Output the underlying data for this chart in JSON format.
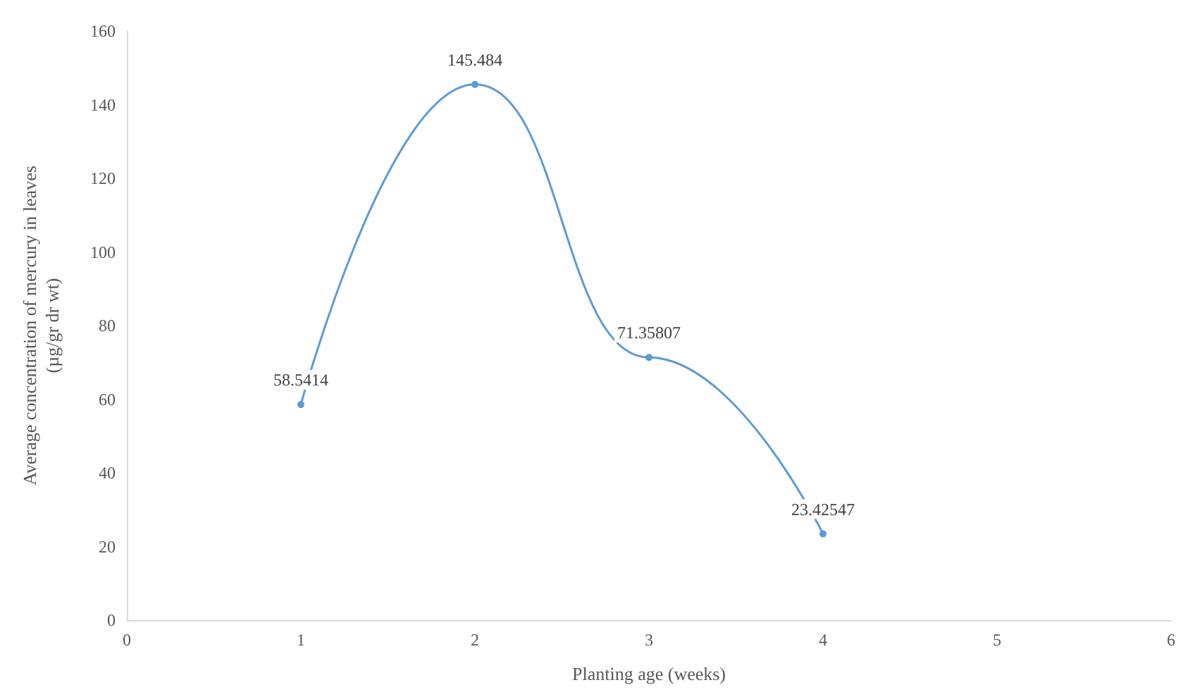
{
  "chart_data": {
    "type": "line",
    "xlabel": "Planting age (weeks)",
    "ylabel": "Average concentration of mercury in leaves\n(µg/gr dr wt)",
    "x": [
      1,
      2,
      3,
      4
    ],
    "series": [
      {
        "color": "#5b9bd5",
        "values": [
          58.5414,
          145.484,
          71.35807,
          23.42547
        ]
      }
    ],
    "value_labels": [
      "58.5414",
      "145.484",
      "71.35807",
      "23.42547"
    ],
    "xlim": [
      0,
      6
    ],
    "xticks": [
      0,
      1,
      2,
      3,
      4,
      5,
      6
    ],
    "ylim": [
      0,
      160
    ],
    "yticks": [
      0,
      20,
      40,
      60,
      80,
      100,
      120,
      140,
      160
    ],
    "grid": false,
    "marker": "circle",
    "line_style": "solid"
  }
}
